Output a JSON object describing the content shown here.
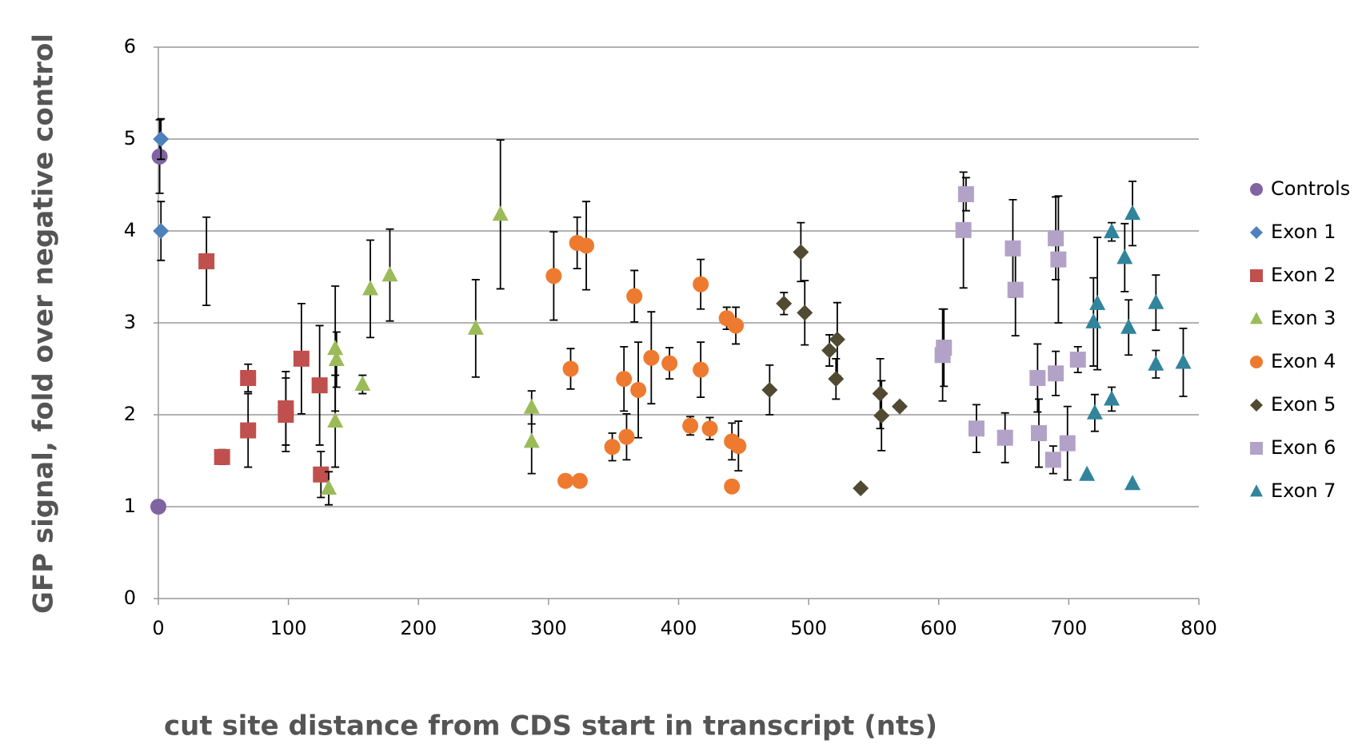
{
  "chart_data": {
    "type": "scatter",
    "xlabel": "cut site distance from CDS start in transcript (nts)",
    "ylabel": "GFP signal, fold over negative control",
    "xlim": [
      0,
      800
    ],
    "xticks": [
      0,
      100,
      200,
      300,
      400,
      500,
      600,
      700,
      800
    ],
    "ylim": [
      0,
      6
    ],
    "yticks": [
      0,
      1,
      2,
      3,
      4,
      5,
      6
    ],
    "grid": true,
    "legend": "right",
    "series": [
      {
        "name": "Controls",
        "color": "#8064a2",
        "marker": "circle",
        "x": [
          1,
          0
        ],
        "values": [
          4.81,
          1.0
        ],
        "errors": [
          0.4,
          0
        ]
      },
      {
        "name": "Exon 1",
        "color": "#4f81bd",
        "marker": "diamond",
        "x": [
          2,
          2
        ],
        "values": [
          5.0,
          4.0
        ],
        "errors": [
          0.22,
          0.32
        ]
      },
      {
        "name": "Exon 2",
        "color": "#c0504d",
        "marker": "square",
        "x": [
          37,
          49,
          69,
          69,
          98,
          98,
          110,
          124,
          125
        ],
        "values": [
          3.67,
          1.54,
          2.4,
          1.83,
          2.07,
          2.0,
          2.61,
          2.32,
          1.35
        ],
        "errors": [
          0.48,
          0.08,
          0.15,
          0.4,
          0.4,
          0.4,
          0.6,
          0.65,
          0.25
        ]
      },
      {
        "name": "Exon 3",
        "color": "#9bbb59",
        "marker": "triangle",
        "x": [
          131,
          136,
          137,
          136,
          157,
          163,
          178,
          244,
          263,
          287,
          287
        ],
        "values": [
          1.2,
          2.72,
          2.6,
          1.93,
          2.33,
          3.37,
          3.52,
          2.94,
          4.18,
          2.08,
          1.71
        ],
        "errors": [
          0.18,
          0.68,
          0.3,
          0.5,
          0.1,
          0.53,
          0.5,
          0.53,
          0.81,
          0.18,
          0.35
        ]
      },
      {
        "name": "Exon 4",
        "color": "#ee7a2f",
        "marker": "circle",
        "x": [
          304,
          313,
          317,
          322,
          324,
          329,
          349,
          358,
          360,
          366,
          369,
          379,
          393,
          409,
          417,
          417,
          424,
          437,
          441,
          441,
          444,
          446
        ],
        "values": [
          3.51,
          1.28,
          2.5,
          3.87,
          1.28,
          3.84,
          1.65,
          2.39,
          1.76,
          3.29,
          2.27,
          2.62,
          2.56,
          1.88,
          3.42,
          2.49,
          1.85,
          3.05,
          1.71,
          1.22,
          2.97,
          1.66
        ],
        "errors": [
          0.48,
          0.05,
          0.22,
          0.28,
          0.05,
          0.48,
          0.15,
          0.35,
          0.25,
          0.28,
          0.52,
          0.5,
          0.17,
          0.1,
          0.27,
          0.3,
          0.12,
          0.12,
          0.2,
          0,
          0.2,
          0.27
        ]
      },
      {
        "name": "Exon 5",
        "color": "#4f4a31",
        "marker": "diamond",
        "x": [
          470,
          481,
          494,
          497,
          516,
          521,
          522,
          540,
          555,
          556,
          570
        ],
        "values": [
          2.27,
          3.21,
          3.77,
          3.11,
          2.7,
          2.39,
          2.82,
          1.2,
          2.23,
          1.99,
          2.09
        ],
        "errors": [
          0.27,
          0.12,
          0.32,
          0.35,
          0.17,
          0.22,
          0.4,
          0.04,
          0.38,
          0.38,
          0.04
        ]
      },
      {
        "name": "Exon 6",
        "color": "#b3a2c7",
        "marker": "square",
        "x": [
          603,
          604,
          619,
          621,
          629,
          651,
          657,
          659,
          676,
          677,
          688,
          690,
          690,
          692,
          699,
          707
        ],
        "values": [
          2.65,
          2.73,
          4.01,
          4.4,
          1.85,
          1.75,
          3.81,
          3.36,
          2.4,
          1.8,
          1.51,
          3.92,
          2.45,
          3.69,
          1.69,
          2.6
        ],
        "errors": [
          0.5,
          0.42,
          0.63,
          0.18,
          0.26,
          0.27,
          0.53,
          0.5,
          0.37,
          0.37,
          0.15,
          0.45,
          0.24,
          0.69,
          0.4,
          0.14
        ]
      },
      {
        "name": "Exon 7",
        "color": "#31849b",
        "marker": "triangle",
        "x": [
          714,
          719,
          720,
          722,
          733,
          733,
          743,
          746,
          749,
          749,
          767,
          767,
          788
        ],
        "values": [
          1.35,
          3.01,
          2.02,
          3.21,
          2.17,
          3.99,
          3.71,
          2.95,
          4.19,
          1.25,
          3.22,
          2.55,
          2.57
        ],
        "errors": [
          0,
          0.48,
          0.2,
          0.72,
          0.13,
          0.1,
          0.37,
          0.3,
          0.35,
          0,
          0.3,
          0.15,
          0.37
        ]
      }
    ]
  }
}
